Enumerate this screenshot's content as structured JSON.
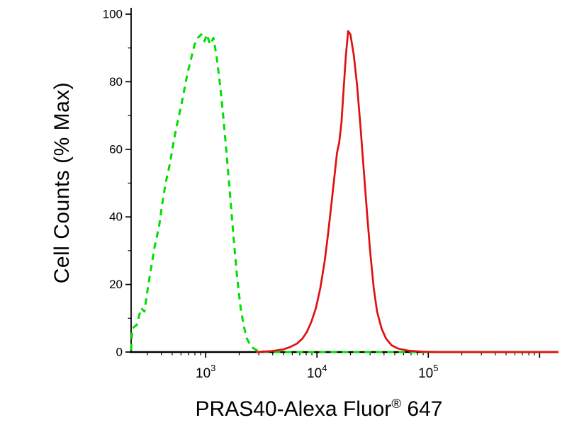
{
  "chart_data": {
    "type": "line",
    "title": "",
    "xlabel": "PRAS40-Alexa Fluor® 647",
    "xlabel_parts": {
      "main": "PRAS40-Alexa Fluor",
      "reg": "®",
      "tail": "647"
    },
    "ylabel": "Cell Counts (% Max)",
    "x_scale": "log10",
    "x_range_log": [
      2.33,
      6.17
    ],
    "x_labeled_exponents": [
      3,
      4,
      5
    ],
    "x_tick_base": "10",
    "ylim": [
      0,
      100
    ],
    "y_major_ticks": [
      0,
      20,
      40,
      60,
      80,
      100
    ],
    "y_minor_step": 10,
    "grid": false,
    "legend": "none",
    "background": "#ffffff",
    "axis_color": "#000000",
    "series": [
      {
        "name": "dashed-green-curve",
        "style": "dashed",
        "color": "#00dd00",
        "dash": [
          9,
          7
        ],
        "width": 3,
        "points": [
          [
            2.33,
            0.5
          ],
          [
            2.34,
            7
          ],
          [
            2.38,
            8
          ],
          [
            2.42,
            13
          ],
          [
            2.45,
            12
          ],
          [
            2.48,
            19
          ],
          [
            2.51,
            25
          ],
          [
            2.54,
            31
          ],
          [
            2.58,
            37
          ],
          [
            2.61,
            44
          ],
          [
            2.64,
            50
          ],
          [
            2.68,
            56
          ],
          [
            2.71,
            62
          ],
          [
            2.74,
            67
          ],
          [
            2.78,
            73
          ],
          [
            2.81,
            78
          ],
          [
            2.84,
            83
          ],
          [
            2.87,
            87
          ],
          [
            2.9,
            91
          ],
          [
            2.93,
            93
          ],
          [
            2.96,
            94
          ],
          [
            2.99,
            92
          ],
          [
            3.01,
            94
          ],
          [
            3.04,
            91
          ],
          [
            3.07,
            93
          ],
          [
            3.1,
            87
          ],
          [
            3.13,
            79
          ],
          [
            3.16,
            69
          ],
          [
            3.19,
            58
          ],
          [
            3.22,
            46
          ],
          [
            3.25,
            34
          ],
          [
            3.28,
            23
          ],
          [
            3.31,
            14
          ],
          [
            3.34,
            8
          ],
          [
            3.37,
            4
          ],
          [
            3.41,
            1.5
          ],
          [
            3.46,
            0.5
          ],
          [
            3.55,
            0
          ],
          [
            6.17,
            0
          ]
        ]
      },
      {
        "name": "solid-red-curve",
        "style": "solid",
        "color": "#e01010",
        "dash": null,
        "width": 2.7,
        "points": [
          [
            3.45,
            0
          ],
          [
            3.6,
            0.3
          ],
          [
            3.7,
            0.8
          ],
          [
            3.76,
            1.5
          ],
          [
            3.82,
            2.5
          ],
          [
            3.87,
            4
          ],
          [
            3.91,
            6
          ],
          [
            3.95,
            9
          ],
          [
            3.99,
            13
          ],
          [
            4.03,
            19
          ],
          [
            4.07,
            27
          ],
          [
            4.1,
            35
          ],
          [
            4.13,
            44
          ],
          [
            4.16,
            53
          ],
          [
            4.18,
            59
          ],
          [
            4.2,
            62
          ],
          [
            4.22,
            68
          ],
          [
            4.24,
            78
          ],
          [
            4.26,
            88
          ],
          [
            4.28,
            95
          ],
          [
            4.3,
            94
          ],
          [
            4.33,
            88
          ],
          [
            4.36,
            79
          ],
          [
            4.39,
            67
          ],
          [
            4.42,
            54
          ],
          [
            4.45,
            41
          ],
          [
            4.48,
            29
          ],
          [
            4.51,
            19
          ],
          [
            4.54,
            12
          ],
          [
            4.58,
            7
          ],
          [
            4.62,
            4
          ],
          [
            4.67,
            2
          ],
          [
            4.73,
            1
          ],
          [
            4.82,
            0.4
          ],
          [
            4.95,
            0.1
          ],
          [
            5.1,
            0
          ],
          [
            6.17,
            0
          ]
        ]
      }
    ]
  }
}
